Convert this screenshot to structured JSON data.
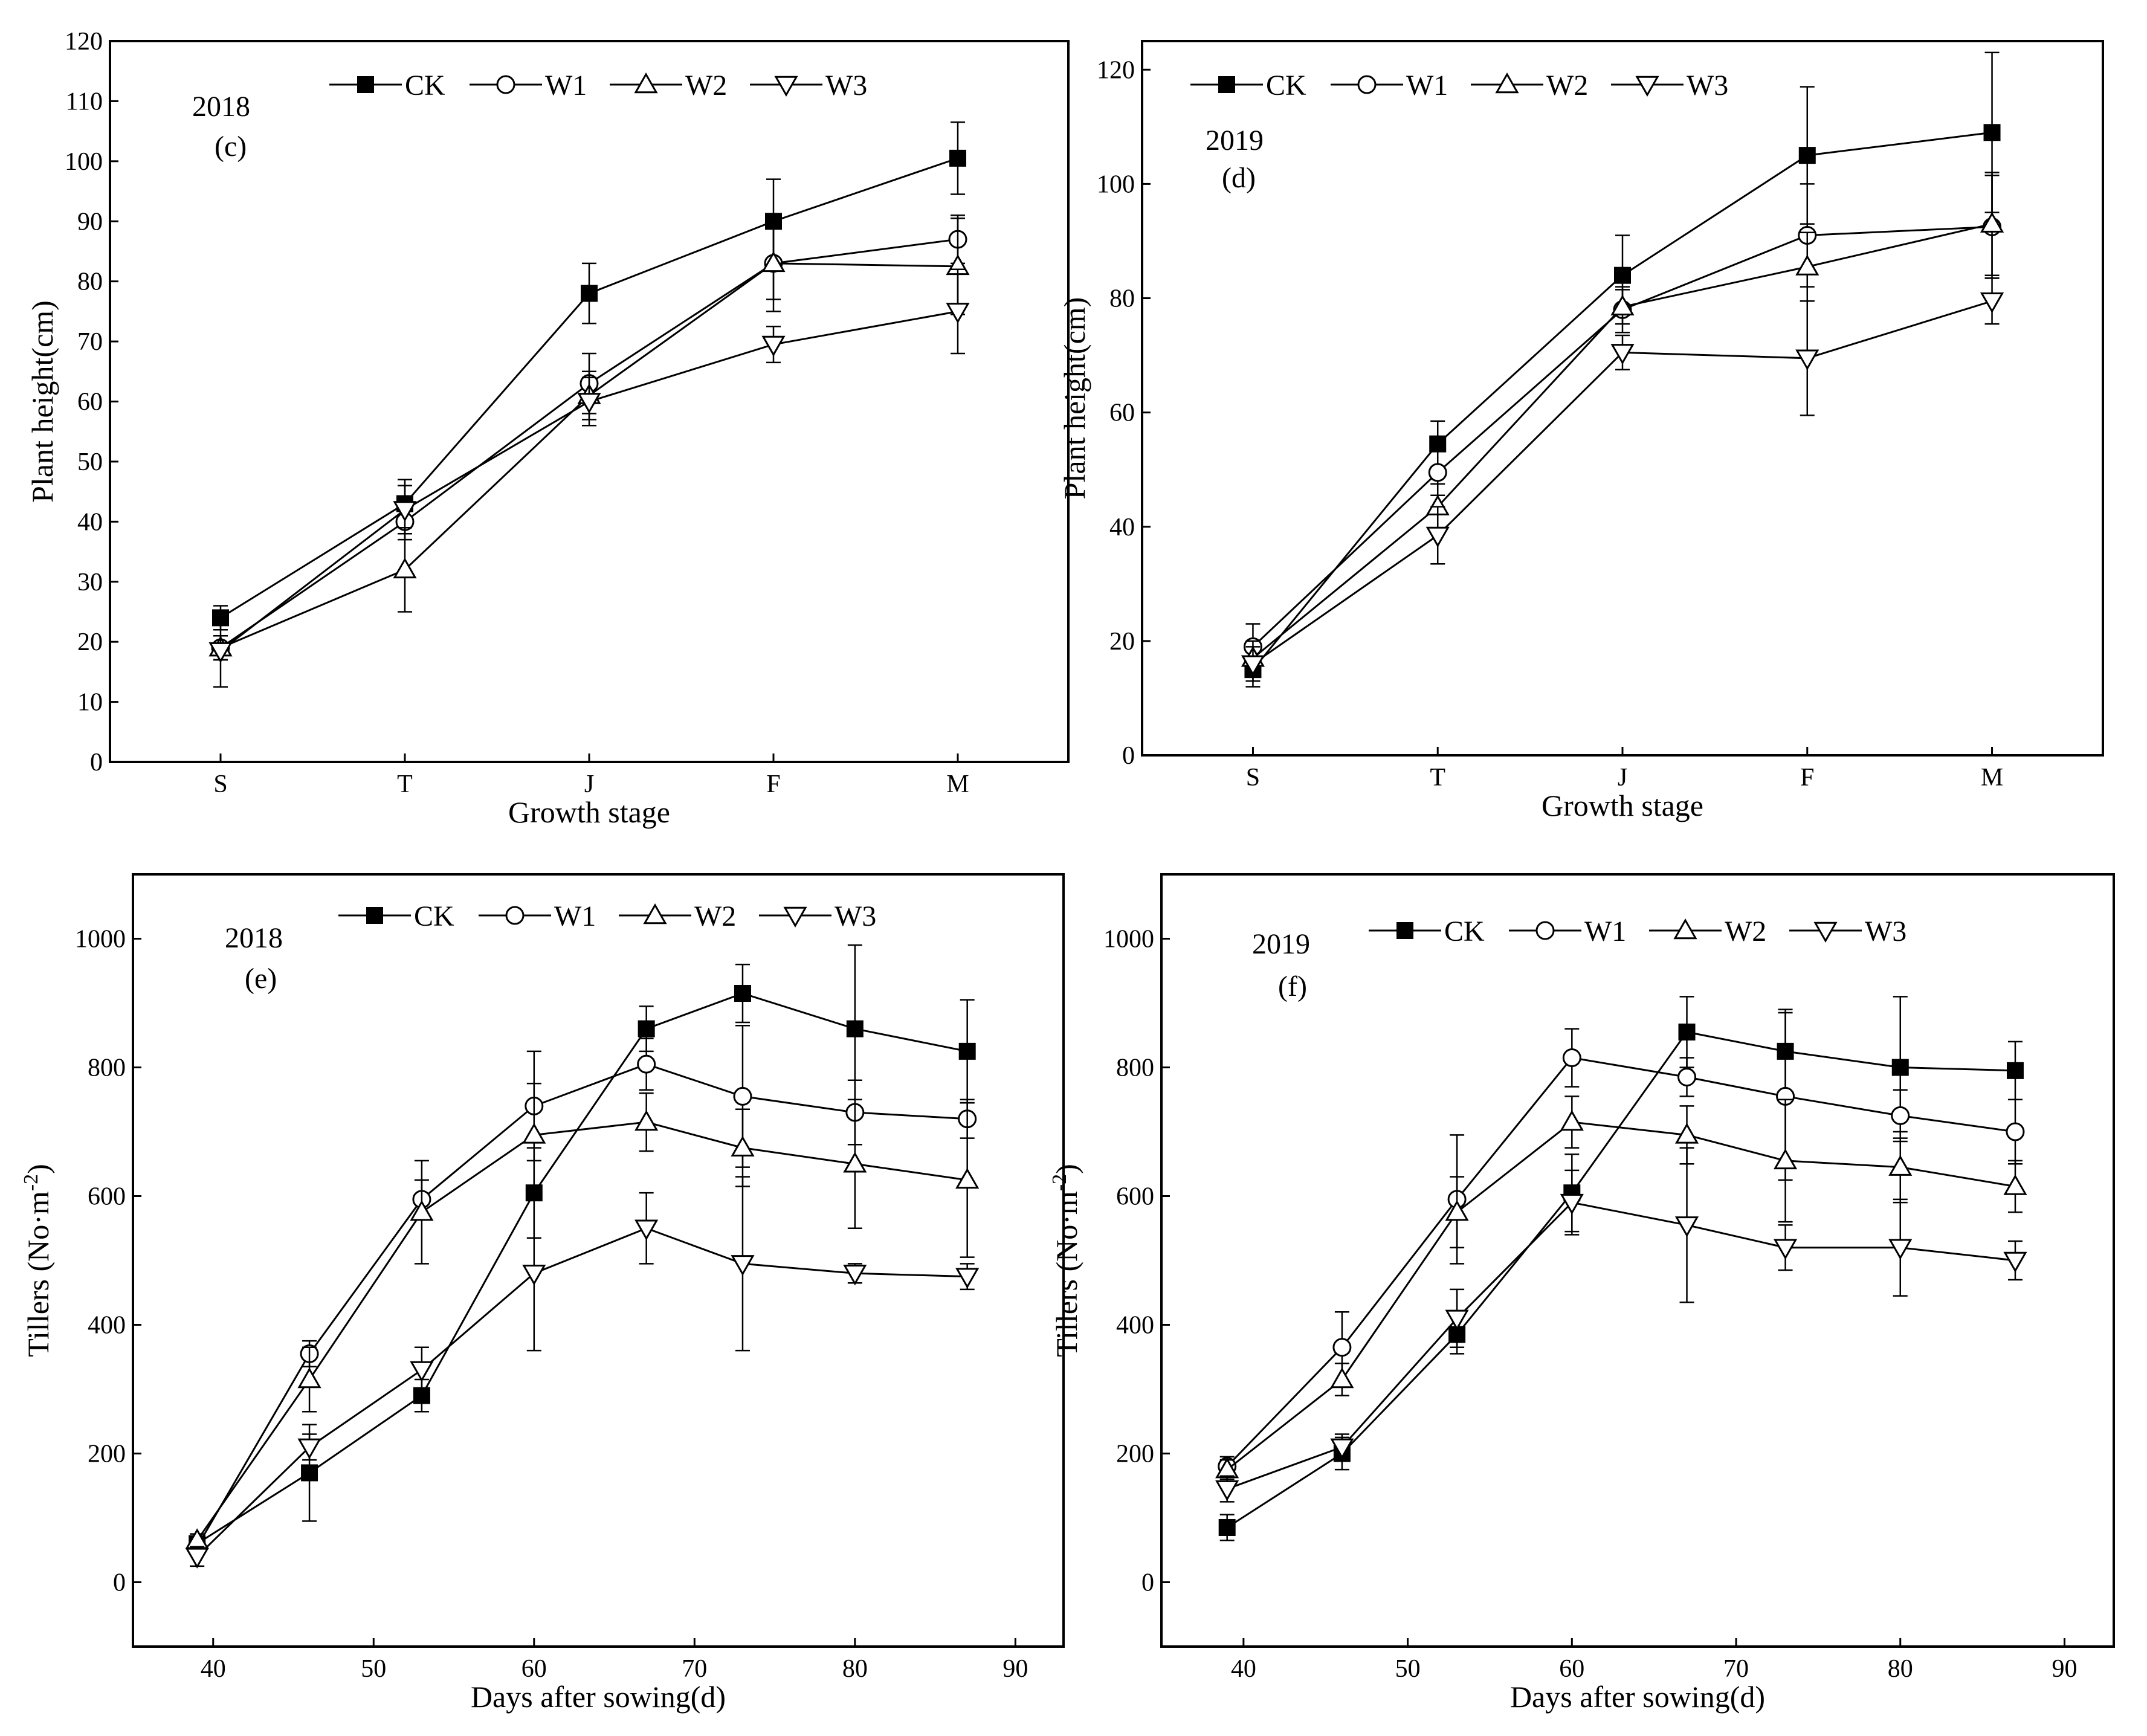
{
  "chart_data": [
    {
      "id": "c",
      "type": "line",
      "year_label": "2018",
      "panel_label": "(c)",
      "xlabel": "Growth stage",
      "ylabel": "Plant height(cm)",
      "categories": [
        "S",
        "T",
        "J",
        "F",
        "M"
      ],
      "ylim": [
        0,
        120
      ],
      "yticks": [
        0,
        10,
        20,
        30,
        40,
        50,
        60,
        70,
        80,
        90,
        100,
        110,
        120
      ],
      "legend": [
        "CK",
        "W1",
        "W2",
        "W3"
      ],
      "series": [
        {
          "name": "CK",
          "marker": "square-filled",
          "values": [
            24,
            43,
            78,
            90,
            100.5
          ],
          "errors": [
            2,
            4,
            5,
            7,
            6
          ]
        },
        {
          "name": "W1",
          "marker": "circle-open",
          "values": [
            19,
            40,
            63,
            83,
            87
          ],
          "errors": [
            2,
            3,
            5,
            6,
            4
          ]
        },
        {
          "name": "W2",
          "marker": "triangle-up-open",
          "values": [
            19,
            32,
            61,
            83,
            82.5
          ],
          "errors": [
            2,
            7,
            4,
            8,
            8
          ]
        },
        {
          "name": "W3",
          "marker": "triangle-down-open",
          "values": [
            18.5,
            42,
            60,
            69.5,
            75
          ],
          "errors": [
            6,
            4,
            4,
            3,
            7
          ]
        }
      ]
    },
    {
      "id": "d",
      "type": "line",
      "year_label": "2019",
      "panel_label": "(d)",
      "xlabel": "Growth stage",
      "ylabel": "Plant height(cm)",
      "categories": [
        "S",
        "T",
        "J",
        "F",
        "M"
      ],
      "ylim": [
        0,
        125
      ],
      "yticks": [
        0,
        20,
        40,
        60,
        80,
        100,
        120
      ],
      "legend": [
        "CK",
        "W1",
        "W2",
        "W3"
      ],
      "series": [
        {
          "name": "CK",
          "marker": "square-filled",
          "values": [
            15,
            54.5,
            84,
            105,
            109
          ],
          "errors": [
            3,
            4,
            7,
            12,
            14
          ]
        },
        {
          "name": "W1",
          "marker": "circle-open",
          "values": [
            19,
            49.5,
            78,
            91,
            92.5
          ],
          "errors": [
            4,
            4,
            4,
            9,
            9
          ]
        },
        {
          "name": "W2",
          "marker": "triangle-up-open",
          "values": [
            17,
            43.5,
            78.5,
            85.5,
            93
          ],
          "errors": [
            3,
            4,
            3,
            6,
            9
          ]
        },
        {
          "name": "W3",
          "marker": "triangle-down-open",
          "values": [
            16,
            38.5,
            70.5,
            69.5,
            79.5
          ],
          "errors": [
            3,
            5,
            3,
            10,
            4
          ]
        }
      ]
    },
    {
      "id": "e",
      "type": "line",
      "year_label": "2018",
      "panel_label": "(e)",
      "xlabel": "Days after sowing(d)",
      "ylabel": "Tillers (No·m",
      "ylabel_sup": "-2",
      "ylabel_end": ")",
      "x": [
        39,
        46,
        53,
        60,
        67,
        73,
        80,
        87
      ],
      "xlim": [
        35,
        93
      ],
      "xticks": [
        40,
        50,
        60,
        70,
        80,
        90
      ],
      "ylim": [
        -100,
        1100
      ],
      "yticks": [
        0,
        200,
        400,
        600,
        800,
        1000
      ],
      "legend": [
        "CK",
        "W1",
        "W2",
        "W3"
      ],
      "series": [
        {
          "name": "CK",
          "marker": "square-filled",
          "values": [
            60,
            170,
            290,
            605,
            860,
            915,
            860,
            825
          ],
          "errors": [
            10,
            75,
            25,
            70,
            35,
            45,
            130,
            80
          ]
        },
        {
          "name": "W1",
          "marker": "circle-open",
          "values": [
            55,
            355,
            595,
            740,
            805,
            755,
            730,
            720
          ],
          "errors": [
            10,
            20,
            30,
            85,
            40,
            110,
            50,
            30
          ]
        },
        {
          "name": "W2",
          "marker": "triangle-up-open",
          "values": [
            65,
            315,
            575,
            695,
            715,
            675,
            650,
            625
          ],
          "errors": [
            10,
            50,
            80,
            80,
            45,
            60,
            100,
            120
          ]
        },
        {
          "name": "W3",
          "marker": "triangle-down-open",
          "values": [
            40,
            210,
            330,
            480,
            550,
            495,
            480,
            475
          ],
          "errors": [
            15,
            20,
            35,
            120,
            55,
            135,
            15,
            20
          ]
        }
      ]
    },
    {
      "id": "f",
      "type": "line",
      "year_label": "2019",
      "panel_label": "(f)",
      "xlabel": "Days after sowing(d)",
      "ylabel": "Tillers (No·m",
      "ylabel_sup": "-2",
      "ylabel_end": ")",
      "x": [
        39,
        46,
        53,
        60,
        67,
        73,
        80,
        87
      ],
      "xlim": [
        35,
        93
      ],
      "xticks": [
        40,
        50,
        60,
        70,
        80,
        90
      ],
      "ylim": [
        -100,
        1100
      ],
      "yticks": [
        0,
        200,
        400,
        600,
        800,
        1000
      ],
      "legend": [
        "CK",
        "W1",
        "W2",
        "W3"
      ],
      "series": [
        {
          "name": "CK",
          "marker": "square-filled",
          "values": [
            85,
            200,
            385,
            605,
            855,
            825,
            800,
            795
          ],
          "errors": [
            20,
            25,
            30,
            60,
            55,
            65,
            110,
            45
          ]
        },
        {
          "name": "W1",
          "marker": "circle-open",
          "values": [
            180,
            365,
            595,
            815,
            785,
            755,
            725,
            700
          ],
          "errors": [
            15,
            55,
            100,
            45,
            30,
            130,
            40,
            50
          ]
        },
        {
          "name": "W2",
          "marker": "triangle-up-open",
          "values": [
            175,
            315,
            575,
            715,
            695,
            655,
            645,
            615
          ],
          "errors": [
            15,
            25,
            55,
            40,
            45,
            95,
            55,
            40
          ]
        },
        {
          "name": "W3",
          "marker": "triangle-down-open",
          "values": [
            145,
            210,
            410,
            590,
            555,
            520,
            520,
            500
          ],
          "errors": [
            20,
            20,
            45,
            50,
            120,
            35,
            75,
            30
          ]
        }
      ]
    }
  ]
}
